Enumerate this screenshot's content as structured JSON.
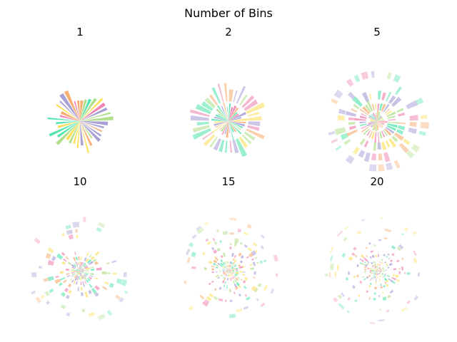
{
  "chart_data": {
    "type": "polar-bar",
    "title": "Number of Bins",
    "layout": "2x3",
    "grid": false,
    "palette": [
      "#ee6fa5",
      "#f5a05a",
      "#fcd93a",
      "#a3d977",
      "#38e0a0",
      "#9a8fd0"
    ],
    "panels": [
      {
        "title": "1",
        "bins": 1,
        "relative_extent": 0.62
      },
      {
        "title": "2",
        "bins": 2,
        "relative_extent": 0.72
      },
      {
        "title": "5",
        "bins": 5,
        "relative_extent": 1.0
      },
      {
        "title": "10",
        "bins": 10,
        "relative_extent": 1.0
      },
      {
        "title": "15",
        "bins": 15,
        "relative_extent": 1.0
      },
      {
        "title": "20",
        "bins": 20,
        "relative_extent": 1.0
      }
    ]
  }
}
